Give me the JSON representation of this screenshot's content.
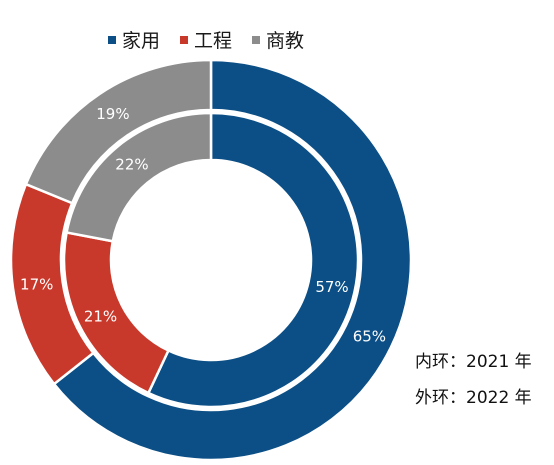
{
  "legend": [
    {
      "label": "家用",
      "color": "#0b4f86"
    },
    {
      "label": "工程",
      "color": "#c8392b"
    },
    {
      "label": "商教",
      "color": "#8c8c8c"
    }
  ],
  "notes": {
    "inner_ring": "内环：2021 年",
    "outer_ring": "外环：2022 年"
  },
  "chart_data": {
    "type": "pie",
    "subtype": "double-donut",
    "categories": [
      "家用",
      "工程",
      "商教"
    ],
    "colors": [
      "#0b4f86",
      "#c8392b",
      "#8c8c8c"
    ],
    "series": [
      {
        "name": "2021",
        "ring": "inner",
        "values": [
          57,
          21,
          22
        ],
        "labels": [
          "57%",
          "21%",
          "22%"
        ]
      },
      {
        "name": "2022",
        "ring": "outer",
        "values": [
          65,
          17,
          19
        ],
        "labels": [
          "65%",
          "17%",
          "19%"
        ]
      }
    ],
    "start_angle": "12 o'clock",
    "direction": "clockwise",
    "legend_position": "top"
  }
}
